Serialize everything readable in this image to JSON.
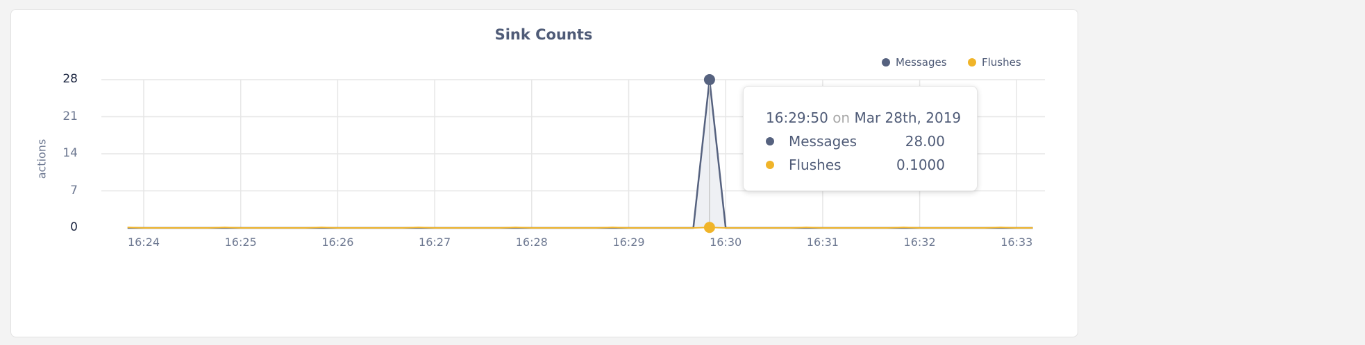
{
  "chart_data": {
    "type": "area",
    "title": "Sink Counts",
    "ylabel": "actions",
    "xlabel": "",
    "ylim": [
      0,
      28
    ],
    "yticks": [
      "0",
      "7",
      "14",
      "21",
      "28"
    ],
    "xticks": [
      "16:24",
      "16:25",
      "16:26",
      "16:27",
      "16:28",
      "16:29",
      "16:30",
      "16:31",
      "16:32",
      "16:33"
    ],
    "grid": true,
    "legend_position": "top-right",
    "x": [
      "16:23:50",
      "16:24:00",
      "16:24:10",
      "16:24:20",
      "16:24:30",
      "16:24:40",
      "16:24:50",
      "16:25:00",
      "16:25:10",
      "16:25:20",
      "16:25:30",
      "16:25:40",
      "16:25:50",
      "16:26:00",
      "16:26:10",
      "16:26:20",
      "16:26:30",
      "16:26:40",
      "16:26:50",
      "16:27:00",
      "16:27:10",
      "16:27:20",
      "16:27:30",
      "16:27:40",
      "16:27:50",
      "16:28:00",
      "16:28:10",
      "16:28:20",
      "16:28:30",
      "16:28:40",
      "16:28:50",
      "16:29:00",
      "16:29:10",
      "16:29:20",
      "16:29:30",
      "16:29:40",
      "16:29:50",
      "16:30:00",
      "16:30:10",
      "16:30:20",
      "16:30:30",
      "16:30:40",
      "16:30:50",
      "16:31:00",
      "16:31:10",
      "16:31:20",
      "16:31:30",
      "16:31:40",
      "16:31:50",
      "16:32:00",
      "16:32:10",
      "16:32:20",
      "16:32:30",
      "16:32:40",
      "16:32:50",
      "16:33:00",
      "16:33:10"
    ],
    "series": [
      {
        "name": "Messages",
        "color": "#56627f",
        "values": [
          0,
          0,
          0,
          0,
          0,
          0,
          0,
          0,
          0,
          0,
          0,
          0,
          0,
          0,
          0,
          0,
          0,
          0,
          0,
          0,
          0,
          0,
          0,
          0,
          0,
          0,
          0,
          0,
          0,
          0,
          0,
          0,
          0,
          0,
          0,
          0,
          28,
          0,
          0,
          0,
          0,
          0,
          0,
          0,
          0,
          0,
          0,
          0,
          0,
          0,
          0,
          0,
          0,
          0,
          0,
          0,
          0
        ]
      },
      {
        "name": "Flushes",
        "color": "#f0b429",
        "values": [
          0.1,
          0,
          0,
          0,
          0,
          0,
          0.1,
          0,
          0,
          0,
          0,
          0,
          0.1,
          0,
          0,
          0,
          0,
          0,
          0.1,
          0,
          0,
          0,
          0,
          0,
          0.1,
          0,
          0,
          0,
          0,
          0,
          0.1,
          0,
          0,
          0,
          0,
          0,
          0.1,
          0,
          0,
          0,
          0,
          0,
          0.1,
          0,
          0,
          0,
          0,
          0,
          0.1,
          0,
          0,
          0,
          0,
          0,
          0.1,
          0,
          0
        ]
      }
    ]
  },
  "tooltip": {
    "time": "16:29:50",
    "on": "on",
    "date": "Mar 28th, 2019",
    "rows": [
      {
        "label": "Messages",
        "value": "28.00"
      },
      {
        "label": "Flushes",
        "value": "0.1000"
      }
    ]
  }
}
